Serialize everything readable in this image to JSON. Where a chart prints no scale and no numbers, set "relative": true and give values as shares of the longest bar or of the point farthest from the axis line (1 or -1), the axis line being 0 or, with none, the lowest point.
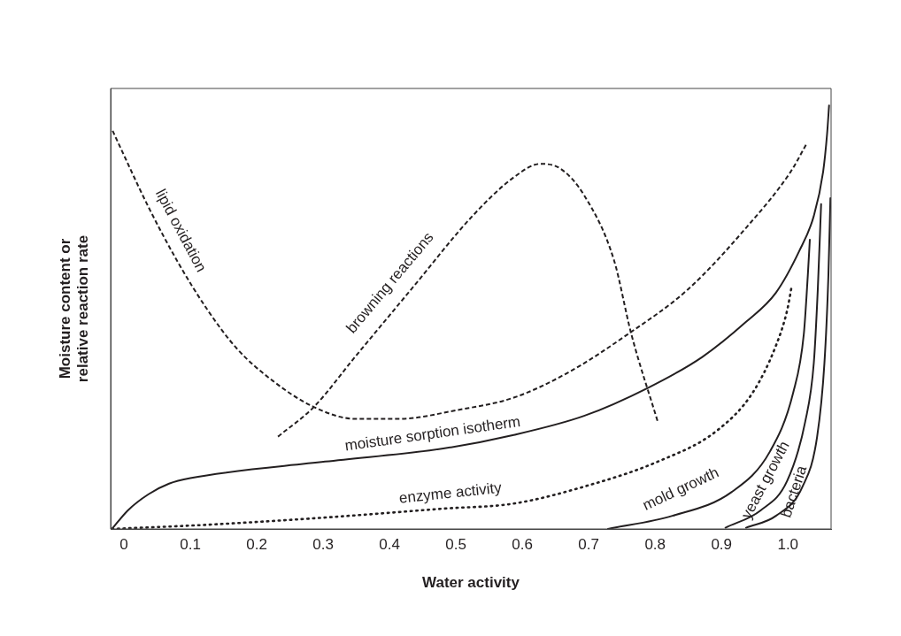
{
  "chart_data": {
    "type": "line",
    "relative": true,
    "xlabel": "Water activity",
    "ylabel": "Moisture content or\nrelative reaction rate",
    "xlim": [
      -0.02,
      1.065
    ],
    "xticks": [
      0,
      0.1,
      0.2,
      0.3,
      0.4,
      0.5,
      0.6,
      0.7,
      0.8,
      0.9,
      {
        "value": 1,
        "label": "1.0"
      }
    ],
    "grid": false,
    "legend": false,
    "marker": "none",
    "series": [
      {
        "name": "lipid oxidation",
        "color": "#231f20",
        "line_style": "dashed",
        "x": [
          -0.017,
          0.037,
          0.082,
          0.126,
          0.17,
          0.224,
          0.286,
          0.348,
          0.414,
          0.503,
          0.587,
          0.671,
          0.76,
          0.849,
          0.937,
          1.004,
          1.028
        ],
        "values": [
          0.94,
          0.76,
          0.628,
          0.517,
          0.426,
          0.35,
          0.288,
          0.26,
          0.26,
          0.281,
          0.31,
          0.371,
          0.461,
          0.565,
          0.711,
          0.843,
          0.909
        ]
      },
      {
        "name": "browning reactions",
        "color": "#231f20",
        "line_style": "dashed",
        "x": [
          0.232,
          0.286,
          0.348,
          0.436,
          0.525,
          0.587,
          0.627,
          0.658,
          0.693,
          0.738,
          0.764,
          0.804
        ],
        "values": [
          0.218,
          0.288,
          0.406,
          0.572,
          0.739,
          0.83,
          0.862,
          0.85,
          0.788,
          0.635,
          0.461,
          0.253
        ]
      },
      {
        "name": "moisture sorption isotherm",
        "color": "#231f20",
        "line_style": "solid",
        "x": [
          -0.018,
          0.006,
          0.037,
          0.068,
          0.1,
          0.303,
          0.481,
          0.587,
          0.693,
          0.789,
          0.871,
          0.937,
          0.982,
          1.017,
          1.039,
          1.053,
          1.059,
          1.062
        ],
        "values": [
          0,
          0.044,
          0.082,
          0.107,
          0.12,
          0.159,
          0.19,
          0.222,
          0.267,
          0.333,
          0.406,
          0.489,
          0.558,
          0.656,
          0.739,
          0.843,
          0.933,
          1
        ]
      },
      {
        "name": "enzyme activity",
        "color": "#231f20",
        "line_style": "dotted",
        "x": [
          -0.018,
          0.126,
          0.303,
          0.481,
          0.587,
          0.693,
          0.804,
          0.893,
          0.947,
          0.982,
          0.999,
          1.006
        ],
        "values": [
          0,
          0.01,
          0.027,
          0.048,
          0.06,
          0.1,
          0.159,
          0.232,
          0.322,
          0.433,
          0.517,
          0.576
        ]
      },
      {
        "name": "mold growth",
        "color": "#231f20",
        "line_style": "solid",
        "x": [
          0.729,
          0.826,
          0.915,
          0.973,
          1.008,
          1.024,
          1.03,
          1.033
        ],
        "values": [
          0,
          0.031,
          0.087,
          0.183,
          0.322,
          0.461,
          0.6,
          0.683
        ]
      },
      {
        "name": "yeast growth",
        "color": "#231f20",
        "line_style": "solid",
        "x": [
          0.906,
          0.959,
          0.999,
          1.026,
          1.039,
          1.045,
          1.05
        ],
        "values": [
          0.003,
          0.044,
          0.114,
          0.253,
          0.392,
          0.566,
          0.767
        ]
      },
      {
        "name": "bacteria",
        "color": "#231f20",
        "line_style": "solid",
        "x": [
          0.937,
          0.982,
          1.022,
          1.044,
          1.055,
          1.061,
          1.064
        ],
        "values": [
          0.003,
          0.031,
          0.1,
          0.218,
          0.392,
          0.6,
          0.781
        ]
      }
    ]
  }
}
